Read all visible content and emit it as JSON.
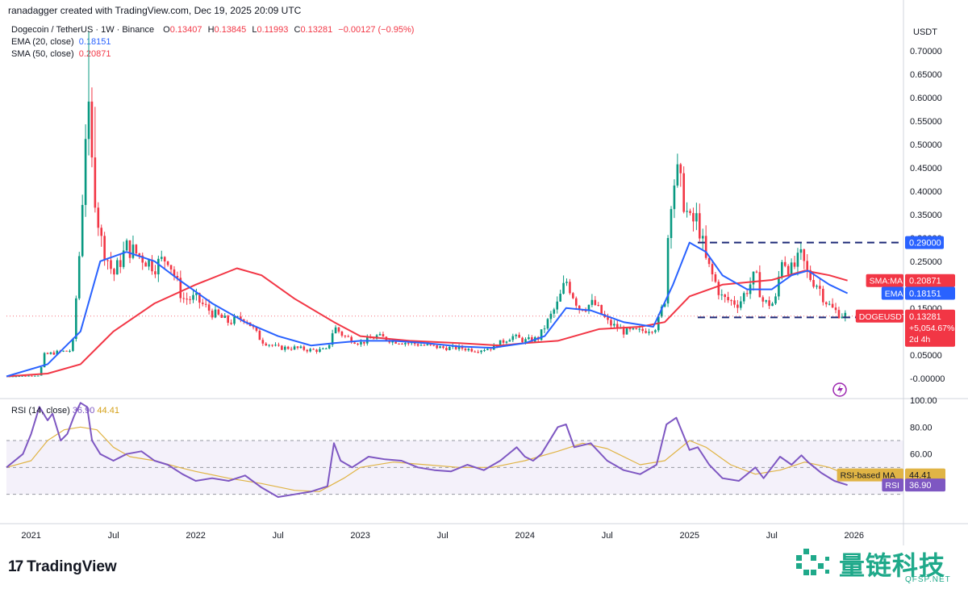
{
  "header": {
    "credit": "ranadagger created with TradingView.com, Dec 19, 2025 20:09 UTC",
    "pair": "Dogecoin / TetherUS · 1W · Binance",
    "ohlc": {
      "o_label": "O",
      "o": "0.13407",
      "h_label": "H",
      "h": "0.13845",
      "l_label": "L",
      "l": "0.11993",
      "c_label": "C",
      "c": "0.13281",
      "change": "−0.00127 (−0.95%)"
    },
    "ema_label": "EMA (20, close)",
    "ema_value": "0.18151",
    "sma_label": "SMA (50, close)",
    "sma_value": "0.20871"
  },
  "rsi_header": {
    "label": "RSI (14, close)",
    "rsi": "36.90",
    "ma": "44.41"
  },
  "currency": "USDT",
  "colors": {
    "up": "#089981",
    "down": "#f23645",
    "ema": "#2962ff",
    "sma": "#f23645",
    "rsi": "#7e57c2",
    "rsi_ma": "#e0b445",
    "band": "#ede7f6",
    "level": "#1e2a78"
  },
  "chart_data": [
    {
      "type": "candlestick",
      "title": "Dogecoin / TetherUS · 1W · Binance",
      "ylim": [
        -0.04,
        0.76
      ],
      "y_ticks": [
        "0.70000",
        "0.65000",
        "0.60000",
        "0.55000",
        "0.50000",
        "0.45000",
        "0.40000",
        "0.35000",
        "0.30000",
        "0.25000",
        "0.20000",
        "0.15000",
        "0.10000",
        "0.05000",
        "-0.00000"
      ],
      "y_tick_values": [
        0.7,
        0.65,
        0.6,
        0.55,
        0.5,
        0.45,
        0.4,
        0.35,
        0.3,
        0.25,
        0.2,
        0.15,
        0.1,
        0.05,
        0.0
      ],
      "x_ticks": [
        "2021",
        "Jul",
        "2022",
        "Jul",
        "2023",
        "Jul",
        "2024",
        "Jul",
        "2025",
        "Jul",
        "2026"
      ],
      "x_tick_values": [
        2021.0,
        2021.5,
        2022.0,
        2022.5,
        2023.0,
        2023.5,
        2024.0,
        2024.5,
        2025.0,
        2025.5,
        2026.0
      ],
      "xlim": [
        2020.85,
        2026.3
      ],
      "price_path": [
        [
          2020.85,
          0.004
        ],
        [
          2021.05,
          0.006
        ],
        [
          2021.08,
          0.05
        ],
        [
          2021.15,
          0.055
        ],
        [
          2021.25,
          0.06
        ],
        [
          2021.3,
          0.3
        ],
        [
          2021.34,
          0.6
        ],
        [
          2021.37,
          0.45
        ],
        [
          2021.42,
          0.3
        ],
        [
          2021.5,
          0.22
        ],
        [
          2021.58,
          0.28
        ],
        [
          2021.67,
          0.26
        ],
        [
          2021.75,
          0.24
        ],
        [
          2021.83,
          0.26
        ],
        [
          2021.92,
          0.17
        ],
        [
          2022.0,
          0.17
        ],
        [
          2022.1,
          0.14
        ],
        [
          2022.2,
          0.12
        ],
        [
          2022.3,
          0.13
        ],
        [
          2022.4,
          0.08
        ],
        [
          2022.5,
          0.065
        ],
        [
          2022.6,
          0.065
        ],
        [
          2022.7,
          0.06
        ],
        [
          2022.8,
          0.06
        ],
        [
          2022.84,
          0.11
        ],
        [
          2022.9,
          0.09
        ],
        [
          2023.0,
          0.075
        ],
        [
          2023.1,
          0.09
        ],
        [
          2023.2,
          0.08
        ],
        [
          2023.3,
          0.075
        ],
        [
          2023.4,
          0.07
        ],
        [
          2023.5,
          0.065
        ],
        [
          2023.6,
          0.065
        ],
        [
          2023.7,
          0.06
        ],
        [
          2023.8,
          0.065
        ],
        [
          2023.92,
          0.09
        ],
        [
          2024.0,
          0.08
        ],
        [
          2024.08,
          0.085
        ],
        [
          2024.2,
          0.16
        ],
        [
          2024.25,
          0.21
        ],
        [
          2024.33,
          0.15
        ],
        [
          2024.42,
          0.16
        ],
        [
          2024.5,
          0.12
        ],
        [
          2024.6,
          0.1
        ],
        [
          2024.7,
          0.1
        ],
        [
          2024.8,
          0.11
        ],
        [
          2024.85,
          0.17
        ],
        [
          2024.88,
          0.38
        ],
        [
          2024.92,
          0.44
        ],
        [
          2024.96,
          0.39
        ],
        [
          2025.0,
          0.33
        ],
        [
          2025.05,
          0.34
        ],
        [
          2025.1,
          0.25
        ],
        [
          2025.2,
          0.17
        ],
        [
          2025.3,
          0.16
        ],
        [
          2025.4,
          0.22
        ],
        [
          2025.45,
          0.16
        ],
        [
          2025.52,
          0.16
        ],
        [
          2025.56,
          0.26
        ],
        [
          2025.62,
          0.23
        ],
        [
          2025.68,
          0.26
        ],
        [
          2025.72,
          0.22
        ],
        [
          2025.78,
          0.2
        ],
        [
          2025.82,
          0.17
        ],
        [
          2025.86,
          0.15
        ],
        [
          2025.9,
          0.14
        ],
        [
          2025.96,
          0.133
        ]
      ],
      "highs": [
        [
          2021.35,
          0.74
        ],
        [
          2021.38,
          0.58
        ],
        [
          2024.92,
          0.48
        ],
        [
          2025.68,
          0.29
        ]
      ],
      "ema20_path": [
        [
          2020.85,
          0.004
        ],
        [
          2021.1,
          0.03
        ],
        [
          2021.3,
          0.1
        ],
        [
          2021.42,
          0.25
        ],
        [
          2021.58,
          0.27
        ],
        [
          2021.75,
          0.25
        ],
        [
          2021.9,
          0.21
        ],
        [
          2022.1,
          0.16
        ],
        [
          2022.3,
          0.12
        ],
        [
          2022.5,
          0.09
        ],
        [
          2022.7,
          0.07
        ],
        [
          2022.84,
          0.075
        ],
        [
          2023.0,
          0.08
        ],
        [
          2023.2,
          0.08
        ],
        [
          2023.4,
          0.075
        ],
        [
          2023.6,
          0.068
        ],
        [
          2023.8,
          0.065
        ],
        [
          2024.0,
          0.075
        ],
        [
          2024.12,
          0.09
        ],
        [
          2024.25,
          0.15
        ],
        [
          2024.4,
          0.145
        ],
        [
          2024.6,
          0.12
        ],
        [
          2024.78,
          0.11
        ],
        [
          2024.9,
          0.2
        ],
        [
          2025.0,
          0.29
        ],
        [
          2025.1,
          0.27
        ],
        [
          2025.2,
          0.22
        ],
        [
          2025.35,
          0.19
        ],
        [
          2025.5,
          0.19
        ],
        [
          2025.62,
          0.22
        ],
        [
          2025.72,
          0.23
        ],
        [
          2025.85,
          0.2
        ],
        [
          2025.96,
          0.18151
        ]
      ],
      "sma50_path": [
        [
          2020.85,
          0.004
        ],
        [
          2021.1,
          0.01
        ],
        [
          2021.3,
          0.03
        ],
        [
          2021.5,
          0.1
        ],
        [
          2021.75,
          0.16
        ],
        [
          2022.0,
          0.2
        ],
        [
          2022.25,
          0.235
        ],
        [
          2022.4,
          0.22
        ],
        [
          2022.6,
          0.17
        ],
        [
          2022.84,
          0.12
        ],
        [
          2023.0,
          0.09
        ],
        [
          2023.3,
          0.08
        ],
        [
          2023.6,
          0.075
        ],
        [
          2023.85,
          0.07
        ],
        [
          2024.0,
          0.075
        ],
        [
          2024.2,
          0.08
        ],
        [
          2024.45,
          0.105
        ],
        [
          2024.7,
          0.11
        ],
        [
          2024.85,
          0.12
        ],
        [
          2025.0,
          0.175
        ],
        [
          2025.2,
          0.2
        ],
        [
          2025.5,
          0.21
        ],
        [
          2025.7,
          0.23
        ],
        [
          2025.85,
          0.22
        ],
        [
          2025.96,
          0.20871
        ]
      ],
      "levels": [
        {
          "label": "0.29000",
          "value": 0.29,
          "x_start": 2025.05
        },
        {
          "label": "0.13000",
          "value": 0.13,
          "x_start": 2025.05
        }
      ],
      "badges": [
        {
          "label": "SMA:MA",
          "value": "0.20871",
          "y": 0.20871,
          "color": "#f23645"
        },
        {
          "label": "EMA",
          "value": "0.18151",
          "y": 0.18151,
          "color": "#2962ff"
        },
        {
          "label": "DOGEUSDT",
          "value": "0.13281",
          "sub1": "+5,054.67%",
          "sub2": "2d 4h",
          "y": 0.13281,
          "color": "#f23645"
        }
      ],
      "last_price": 0.13281
    },
    {
      "type": "line",
      "title": "RSI (14, close)",
      "ylim": [
        10,
        100
      ],
      "y_ticks": [
        "100.00",
        "80.00",
        "60.00"
      ],
      "y_tick_values": [
        100,
        80,
        60
      ],
      "band": [
        30,
        70
      ],
      "midline": 50,
      "rsi_path": [
        [
          2020.85,
          50
        ],
        [
          2020.9,
          55
        ],
        [
          2020.95,
          60
        ],
        [
          2021.0,
          75
        ],
        [
          2021.05,
          95
        ],
        [
          2021.1,
          85
        ],
        [
          2021.13,
          90
        ],
        [
          2021.18,
          70
        ],
        [
          2021.22,
          75
        ],
        [
          2021.26,
          88
        ],
        [
          2021.3,
          98
        ],
        [
          2021.34,
          95
        ],
        [
          2021.37,
          70
        ],
        [
          2021.42,
          60
        ],
        [
          2021.5,
          55
        ],
        [
          2021.58,
          60
        ],
        [
          2021.67,
          62
        ],
        [
          2021.75,
          55
        ],
        [
          2021.83,
          52
        ],
        [
          2021.92,
          45
        ],
        [
          2022.0,
          40
        ],
        [
          2022.1,
          42
        ],
        [
          2022.2,
          40
        ],
        [
          2022.3,
          44
        ],
        [
          2022.4,
          35
        ],
        [
          2022.5,
          28
        ],
        [
          2022.6,
          30
        ],
        [
          2022.7,
          32
        ],
        [
          2022.8,
          36
        ],
        [
          2022.84,
          68
        ],
        [
          2022.88,
          55
        ],
        [
          2022.95,
          50
        ],
        [
          2023.05,
          58
        ],
        [
          2023.15,
          56
        ],
        [
          2023.25,
          55
        ],
        [
          2023.35,
          50
        ],
        [
          2023.45,
          48
        ],
        [
          2023.55,
          47
        ],
        [
          2023.65,
          52
        ],
        [
          2023.75,
          48
        ],
        [
          2023.85,
          55
        ],
        [
          2023.95,
          65
        ],
        [
          2024.0,
          58
        ],
        [
          2024.05,
          55
        ],
        [
          2024.1,
          60
        ],
        [
          2024.2,
          80
        ],
        [
          2024.25,
          82
        ],
        [
          2024.3,
          65
        ],
        [
          2024.4,
          68
        ],
        [
          2024.5,
          55
        ],
        [
          2024.6,
          48
        ],
        [
          2024.7,
          45
        ],
        [
          2024.8,
          52
        ],
        [
          2024.86,
          82
        ],
        [
          2024.92,
          87
        ],
        [
          2024.96,
          75
        ],
        [
          2025.0,
          63
        ],
        [
          2025.05,
          65
        ],
        [
          2025.12,
          52
        ],
        [
          2025.2,
          42
        ],
        [
          2025.3,
          40
        ],
        [
          2025.4,
          50
        ],
        [
          2025.45,
          42
        ],
        [
          2025.55,
          58
        ],
        [
          2025.62,
          52
        ],
        [
          2025.68,
          59
        ],
        [
          2025.72,
          54
        ],
        [
          2025.8,
          46
        ],
        [
          2025.88,
          40
        ],
        [
          2025.96,
          36.9
        ]
      ],
      "rsi_ma_path": [
        [
          2020.85,
          50
        ],
        [
          2021.0,
          55
        ],
        [
          2021.1,
          70
        ],
        [
          2021.2,
          78
        ],
        [
          2021.3,
          80
        ],
        [
          2021.4,
          78
        ],
        [
          2021.5,
          65
        ],
        [
          2021.6,
          58
        ],
        [
          2021.75,
          55
        ],
        [
          2021.9,
          50
        ],
        [
          2022.0,
          47
        ],
        [
          2022.2,
          42
        ],
        [
          2022.4,
          38
        ],
        [
          2022.6,
          33
        ],
        [
          2022.75,
          32
        ],
        [
          2022.9,
          42
        ],
        [
          2023.0,
          50
        ],
        [
          2023.2,
          54
        ],
        [
          2023.4,
          52
        ],
        [
          2023.6,
          50
        ],
        [
          2023.8,
          50
        ],
        [
          2024.0,
          55
        ],
        [
          2024.2,
          62
        ],
        [
          2024.35,
          68
        ],
        [
          2024.5,
          64
        ],
        [
          2024.7,
          52
        ],
        [
          2024.85,
          55
        ],
        [
          2025.0,
          70
        ],
        [
          2025.1,
          65
        ],
        [
          2025.25,
          52
        ],
        [
          2025.4,
          45
        ],
        [
          2025.55,
          48
        ],
        [
          2025.7,
          54
        ],
        [
          2025.85,
          50
        ],
        [
          2025.96,
          44.41
        ]
      ],
      "badges": [
        {
          "label": "RSI-based MA",
          "value": "44.41",
          "y": 44.41,
          "color": "#e0b445"
        },
        {
          "label": "RSI",
          "value": "36.90",
          "y": 36.9,
          "color": "#7e57c2"
        }
      ]
    }
  ],
  "branding": {
    "logo": "TradingView",
    "watermark_cn": "量链科技",
    "watermark_en": "QFSP.NET"
  }
}
